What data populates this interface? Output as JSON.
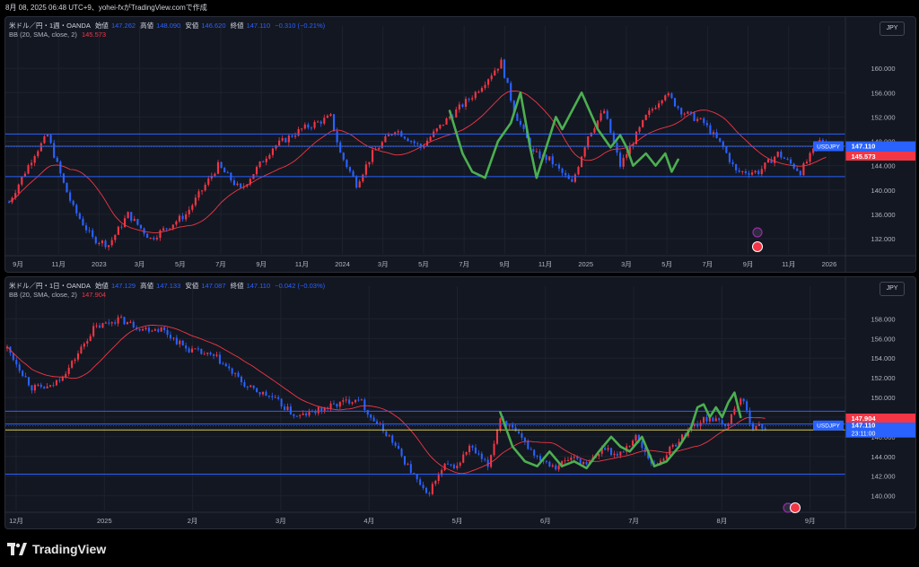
{
  "header": {
    "title": "8月 08, 2025 06:48 UTC+9、yohei-fxがTradingView.comで作成"
  },
  "footer": {
    "brand": "TradingView"
  },
  "colors": {
    "bg": "#131722",
    "up": "#f23645",
    "down": "#2962ff",
    "bb": "#f23645",
    "hline": "#2962ff",
    "yline": "#d4c84a",
    "green": "#4caf50"
  },
  "chart_data": [
    {
      "type": "candlestick",
      "symbol": "米ドル／円・1週・OANDA",
      "ohlc_labels": {
        "o": "始値",
        "h": "高値",
        "l": "安値",
        "c": "終値"
      },
      "ohlc": {
        "o": "147.262",
        "h": "148.090",
        "l": "146.620",
        "c": "147.110",
        "chg": "−0.310 (−0.21%)"
      },
      "indicator": {
        "label": "BB (20, SMA, close, 2)",
        "value": "145.573"
      },
      "currency": "JPY",
      "price_tag": {
        "symbol": "USDJPY",
        "price": "147.110",
        "countdown": "23:11:00"
      },
      "bb_tag": "145.573",
      "ylim": [
        129.5,
        164
      ],
      "yticks": [
        "160.000",
        "156.000",
        "152.000",
        "148.000",
        "144.000",
        "140.000",
        "136.000",
        "132.000"
      ],
      "ytick_values": [
        160,
        156,
        152,
        148,
        144,
        140,
        136,
        132
      ],
      "xticks": [
        "9月",
        "11月",
        "2023",
        "3月",
        "5月",
        "7月",
        "9月",
        "11月",
        "2024",
        "3月",
        "5月",
        "7月",
        "9月",
        "11月",
        "2025",
        "3月",
        "5月",
        "7月",
        "9月",
        "11月",
        "2026"
      ],
      "hlines": [
        149.2,
        147.2,
        142.2
      ],
      "anchors": [
        [
          0,
          138
        ],
        [
          8,
          146
        ],
        [
          12,
          149
        ],
        [
          17,
          141
        ],
        [
          20,
          137
        ],
        [
          26,
          132
        ],
        [
          31,
          131
        ],
        [
          37,
          136
        ],
        [
          44,
          132
        ],
        [
          55,
          136
        ],
        [
          65,
          144
        ],
        [
          72,
          140
        ],
        [
          82,
          147
        ],
        [
          91,
          150
        ],
        [
          100,
          152
        ],
        [
          103,
          146
        ],
        [
          108,
          141
        ],
        [
          113,
          146
        ],
        [
          120,
          150
        ],
        [
          128,
          147
        ],
        [
          135,
          151
        ],
        [
          145,
          156
        ],
        [
          153,
          161
        ],
        [
          157,
          153
        ],
        [
          163,
          146
        ],
        [
          168,
          145
        ],
        [
          175,
          141
        ],
        [
          180,
          149
        ],
        [
          185,
          153
        ],
        [
          190,
          144
        ],
        [
          198,
          152
        ],
        [
          204,
          156
        ],
        [
          209,
          153
        ],
        [
          216,
          151
        ],
        [
          222,
          147
        ],
        [
          226,
          143
        ],
        [
          233,
          143
        ],
        [
          239,
          146
        ],
        [
          246,
          143
        ],
        [
          252,
          148
        ],
        [
          254,
          148
        ]
      ],
      "green_path": [
        [
          137,
          153
        ],
        [
          141,
          146
        ],
        [
          144,
          143
        ],
        [
          148,
          142
        ],
        [
          152,
          148
        ],
        [
          156,
          151
        ],
        [
          159,
          156
        ],
        [
          162,
          147
        ],
        [
          164,
          142
        ],
        [
          167,
          147
        ],
        [
          170,
          152
        ],
        [
          172,
          150
        ],
        [
          175,
          153
        ],
        [
          178,
          156
        ],
        [
          183,
          150
        ],
        [
          187,
          147
        ],
        [
          190,
          149
        ],
        [
          192,
          147
        ],
        [
          194,
          144
        ],
        [
          198,
          146
        ],
        [
          201,
          144
        ],
        [
          204,
          146
        ],
        [
          206,
          143
        ],
        [
          208,
          145
        ]
      ],
      "x_range": [
        0,
        260
      ]
    },
    {
      "type": "candlestick",
      "symbol": "米ドル／円・1日・OANDA",
      "ohlc_labels": {
        "o": "始値",
        "h": "高値",
        "l": "安値",
        "c": "終値"
      },
      "ohlc": {
        "o": "147.129",
        "h": "147.133",
        "l": "147.087",
        "c": "147.110",
        "chg": "−0.042 (−0.03%)"
      },
      "indicator": {
        "label": "BB (20, SMA, close, 2)",
        "value": "147.904"
      },
      "currency": "JPY",
      "price_tag": {
        "symbol": "USDJPY",
        "price": "147.110",
        "countdown": "23:11:00"
      },
      "bb_tag": "147.904",
      "ylim": [
        138.5,
        159.5
      ],
      "yticks": [
        "158.000",
        "156.000",
        "154.000",
        "152.000",
        "150.000",
        "148.000",
        "146.000",
        "144.000",
        "142.000",
        "140.000"
      ],
      "ytick_values": [
        158,
        156,
        154,
        152,
        150,
        148,
        146,
        144,
        142,
        140
      ],
      "xticks": [
        "12月",
        "2025",
        "2月",
        "3月",
        "4月",
        "5月",
        "6月",
        "7月",
        "8月",
        "9月"
      ],
      "hlines": [
        148.6,
        147.3,
        142.2
      ],
      "ylines": [
        146.7
      ],
      "anchors": [
        [
          0,
          155
        ],
        [
          8,
          151
        ],
        [
          14,
          151
        ],
        [
          20,
          153
        ],
        [
          28,
          157
        ],
        [
          36,
          158
        ],
        [
          44,
          157
        ],
        [
          50,
          157
        ],
        [
          58,
          155
        ],
        [
          68,
          154
        ],
        [
          78,
          151
        ],
        [
          86,
          150
        ],
        [
          94,
          148
        ],
        [
          104,
          149
        ],
        [
          114,
          150
        ],
        [
          118,
          148
        ],
        [
          124,
          146
        ],
        [
          130,
          143
        ],
        [
          136,
          140
        ],
        [
          142,
          143
        ],
        [
          146,
          143
        ],
        [
          150,
          145
        ],
        [
          156,
          143
        ],
        [
          160,
          148
        ],
        [
          166,
          146
        ],
        [
          172,
          144
        ],
        [
          178,
          143
        ],
        [
          184,
          144
        ],
        [
          188,
          143
        ],
        [
          194,
          145
        ],
        [
          198,
          144
        ],
        [
          204,
          146
        ],
        [
          210,
          143
        ],
        [
          216,
          145
        ],
        [
          222,
          147
        ],
        [
          228,
          148
        ],
        [
          233,
          147
        ],
        [
          238,
          150
        ],
        [
          242,
          147
        ],
        [
          246,
          147
        ]
      ],
      "green_path": [
        [
          160,
          148.5
        ],
        [
          164,
          145
        ],
        [
          168,
          143.5
        ],
        [
          172,
          143
        ],
        [
          176,
          144.5
        ],
        [
          180,
          143
        ],
        [
          184,
          143.5
        ],
        [
          188,
          142.8
        ],
        [
          192,
          144.5
        ],
        [
          196,
          146
        ],
        [
          199,
          145
        ],
        [
          202,
          144.5
        ],
        [
          206,
          146
        ],
        [
          210,
          143
        ],
        [
          214,
          143.5
        ],
        [
          218,
          145
        ],
        [
          222,
          147
        ],
        [
          224,
          149
        ],
        [
          226,
          149.3
        ],
        [
          228,
          148
        ],
        [
          230,
          149
        ],
        [
          232,
          148
        ],
        [
          234,
          149.5
        ],
        [
          236,
          150.5
        ],
        [
          238,
          148
        ]
      ],
      "x_range": [
        0,
        272
      ]
    }
  ]
}
